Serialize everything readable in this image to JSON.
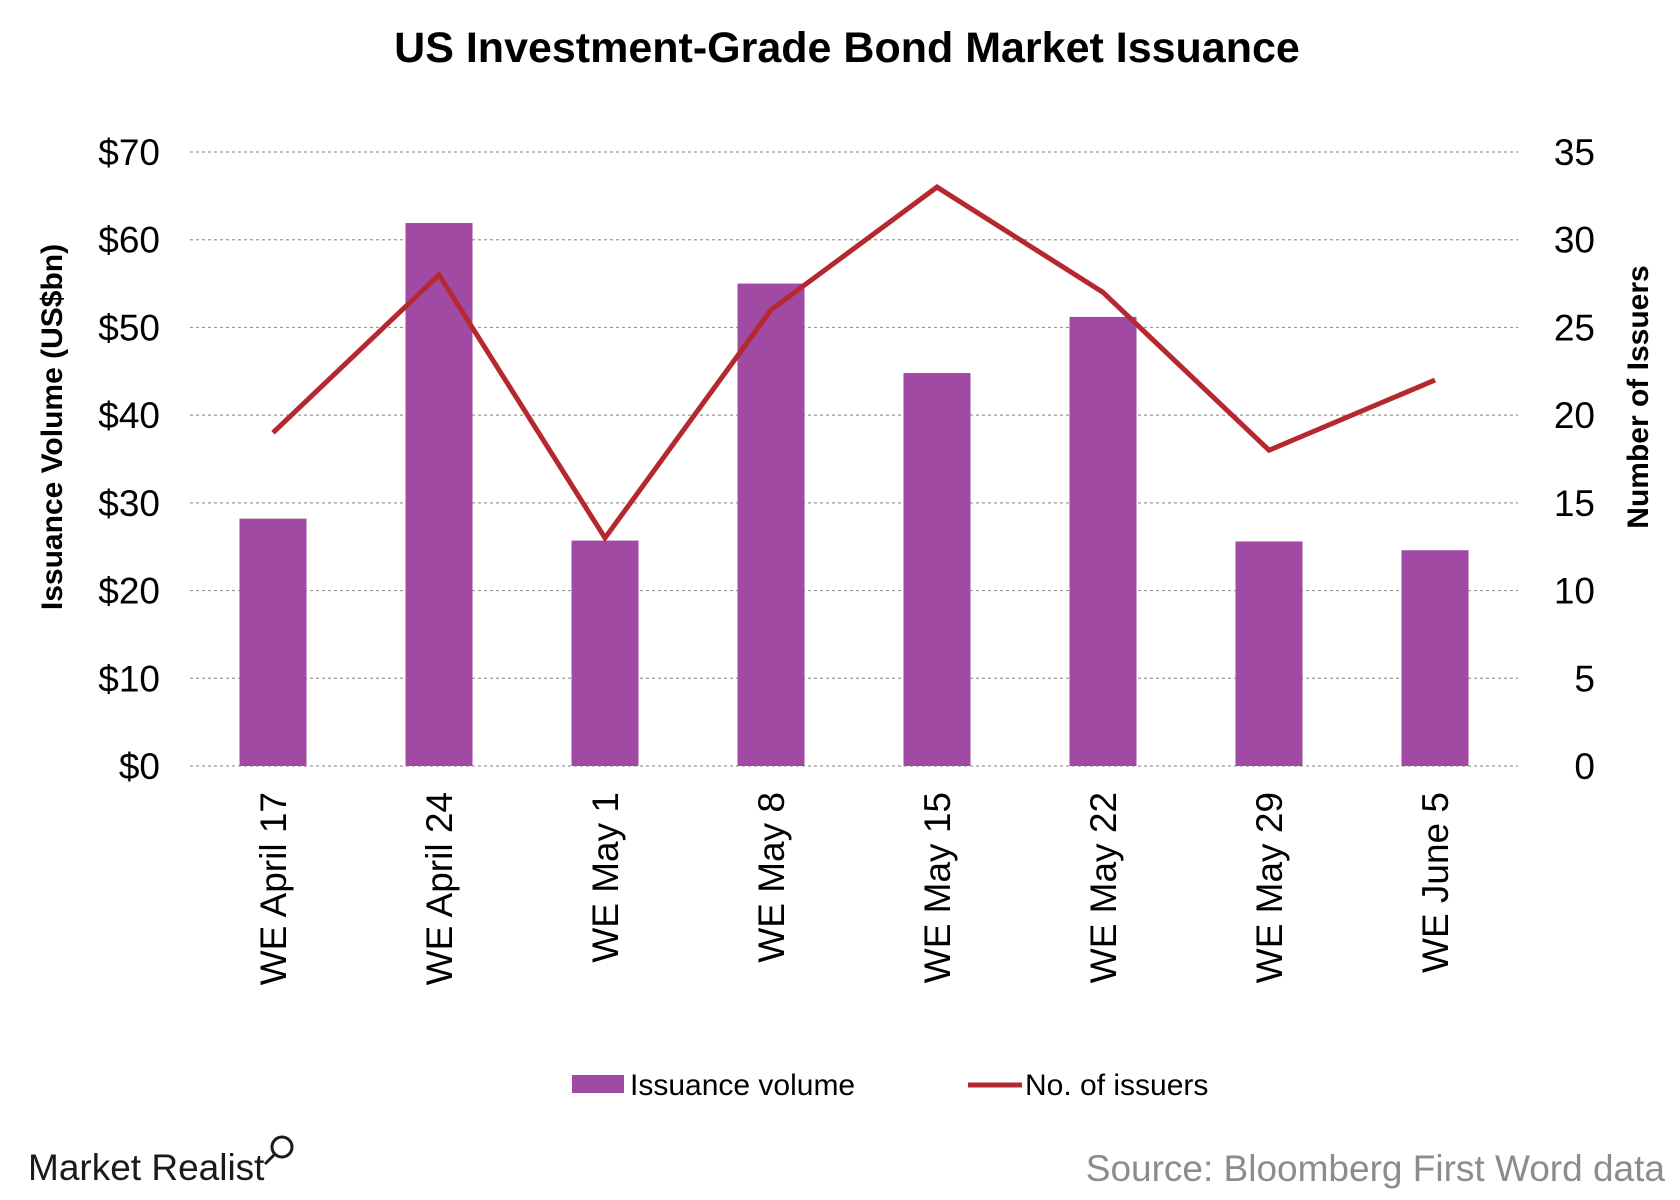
{
  "chart_data": {
    "type": "bar",
    "title": "US Investment-Grade Bond Market Issuance",
    "categories": [
      "WE April 17",
      "WE April 24",
      "WE May 1",
      "WE May 8",
      "WE May 15",
      "WE May 22",
      "WE May 29",
      "WE June 5"
    ],
    "series": [
      {
        "name": "Issuance volume",
        "type": "bar",
        "axis": "left",
        "color": "#a04aa4",
        "values": [
          28.2,
          61.9,
          25.7,
          55.0,
          44.8,
          51.2,
          25.6,
          24.6
        ]
      },
      {
        "name": "No. of issuers",
        "type": "line",
        "axis": "right",
        "color": "#b5282f",
        "values": [
          19,
          28,
          13,
          26,
          33,
          27,
          18,
          22
        ]
      }
    ],
    "ylabel": "Issuance Volume (US$bn)",
    "y2label": "Number of Issuers",
    "ylim": [
      0,
      70
    ],
    "y2lim": [
      0,
      35
    ],
    "yticks": [
      "$0",
      "$10",
      "$20",
      "$30",
      "$40",
      "$50",
      "$60",
      "$70"
    ],
    "y2ticks": [
      "0",
      "5",
      "10",
      "15",
      "20",
      "25",
      "30",
      "35"
    ],
    "grid": true,
    "legend_position": "bottom"
  },
  "branding": {
    "logo_text": "Market Realist"
  },
  "source_note": "Source: Bloomberg First Word data"
}
